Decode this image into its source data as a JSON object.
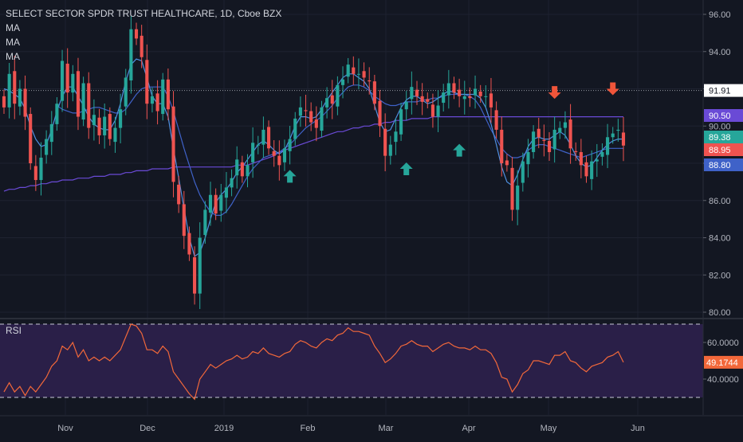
{
  "header": {
    "title": "SELECT SECTOR SPDR TRUST HEALTHCARE, 1D, Cboe BZX",
    "indicators": [
      "MA",
      "MA",
      "MA"
    ]
  },
  "rsi_panel": {
    "label": "RSI"
  },
  "colors": {
    "background": "#131722",
    "up": "#26a69a",
    "down": "#ef5350",
    "ma_fast": "#4f8fe0",
    "ma_mid": "#3f62c8",
    "ma_slow": "#6a4ad6",
    "rsi": "#f2683a",
    "rsi_band": "#2a1f48"
  },
  "chart_data": [
    {
      "type": "candlestick",
      "ylim": [
        80,
        97
      ],
      "y_ticks": [
        80,
        82,
        84,
        86,
        88,
        90,
        92,
        94,
        96
      ],
      "y_tick_labels": [
        "80.00",
        "82.00",
        "84.00",
        "86.00",
        "88.00",
        "90.00",
        "92.00",
        "94.00",
        "96.00"
      ],
      "x_ticks": [
        "Nov",
        "Dec",
        "2019",
        "Feb",
        "Mar",
        "Apr",
        "May",
        "Jun"
      ],
      "price_labels": [
        {
          "text": "91.91",
          "value": 91.91,
          "kind": "plain"
        },
        {
          "text": "90.50",
          "value": 90.5,
          "kind": "ma_slow"
        },
        {
          "text": "89.38",
          "value": 89.38,
          "kind": "up"
        },
        {
          "text": "88.95",
          "value": 88.95,
          "kind": "down"
        },
        {
          "text": "88.80",
          "value": 88.8,
          "kind": "ma_mid"
        }
      ],
      "horizontal_line": 91.91,
      "close": [
        91.0,
        92.8,
        91.2,
        92.0,
        90.5,
        88.0,
        87.1,
        88.3,
        89.3,
        90.1,
        91.2,
        93.5,
        91.8,
        92.8,
        90.5,
        92.3,
        89.9,
        90.6,
        89.5,
        90.5,
        89.3,
        89.9,
        90.9,
        92.6,
        95.2,
        94.7,
        93.7,
        91.2,
        91.6,
        90.8,
        92.5,
        90.9,
        87.0,
        85.8,
        84.1,
        83.1,
        81.0,
        84.0,
        85.5,
        86.3,
        85.3,
        86.3,
        86.7,
        87.2,
        88.2,
        87.3,
        87.9,
        89.1,
        89.0,
        89.8,
        88.8,
        88.4,
        87.9,
        88.8,
        89.3,
        90.4,
        91.0,
        90.8,
        90.2,
        89.9,
        91.0,
        91.5,
        91.2,
        92.2,
        92.5,
        93.3,
        92.8,
        92.8,
        92.6,
        92.4,
        91.2,
        90.0,
        88.4,
        89.0,
        89.7,
        90.9,
        91.3,
        92.1,
        91.6,
        91.3,
        91.3,
        90.5,
        91.1,
        91.8,
        92.3,
        91.8,
        91.6,
        91.6,
        91.5,
        92.0,
        91.6,
        91.6,
        91.0,
        89.8,
        88.0,
        87.9,
        85.5,
        86.8,
        88.1,
        88.6,
        89.7,
        89.4,
        89.2,
        88.6,
        89.8,
        89.9,
        90.2,
        88.8,
        88.6,
        87.9,
        87.3,
        88.1,
        88.2,
        88.6,
        89.4,
        89.6,
        89.8,
        88.95
      ],
      "ma_fast": [
        92.0,
        91.9,
        91.7,
        91.5,
        90.9,
        90.0,
        89.3,
        88.9,
        89.0,
        89.8,
        90.8,
        91.6,
        92.1,
        92.1,
        91.6,
        91.1,
        90.5,
        90.1,
        89.9,
        89.8,
        89.8,
        90.3,
        91.2,
        92.4,
        93.3,
        93.6,
        93.5,
        92.6,
        91.6,
        91.2,
        91.2,
        90.5,
        88.8,
        87.2,
        85.6,
        84.0,
        83.0,
        83.2,
        84.0,
        85.0,
        85.9,
        86.3,
        86.6,
        87.0,
        87.5,
        87.8,
        88.2,
        88.6,
        89.0,
        89.2,
        89.0,
        88.7,
        88.5,
        88.7,
        89.3,
        90.0,
        90.5,
        90.5,
        90.4,
        90.5,
        90.9,
        91.4,
        91.8,
        92.2,
        92.6,
        92.8,
        92.8,
        92.6,
        92.4,
        92.0,
        91.1,
        90.2,
        89.7,
        89.8,
        90.4,
        91.0,
        91.4,
        91.6,
        91.6,
        91.4,
        91.2,
        91.3,
        91.5,
        91.7,
        91.9,
        91.8,
        91.7,
        91.7,
        91.7,
        91.7,
        91.5,
        91.0,
        90.1,
        89.0,
        87.8,
        87.0,
        86.8,
        87.4,
        88.2,
        88.9,
        89.3,
        89.4,
        89.3,
        89.3,
        89.5,
        89.7,
        89.5,
        89.0,
        88.4,
        88.0,
        87.8,
        87.9,
        88.3,
        88.7,
        89.0,
        89.2,
        89.3,
        89.3
      ],
      "ma_mid": [
        null,
        null,
        null,
        null,
        null,
        null,
        null,
        null,
        null,
        null,
        91.1,
        90.9,
        90.8,
        90.7,
        90.7,
        90.8,
        90.9,
        91.0,
        91.0,
        90.9,
        90.8,
        90.7,
        90.7,
        90.9,
        91.3,
        91.7,
        92.0,
        92.1,
        92.1,
        92.1,
        92.1,
        91.6,
        90.8,
        89.8,
        88.8,
        87.9,
        87.0,
        86.3,
        85.8,
        85.4,
        85.2,
        85.2,
        85.4,
        85.8,
        86.3,
        86.8,
        87.3,
        87.7,
        88.0,
        88.3,
        88.4,
        88.5,
        88.6,
        88.8,
        89.0,
        89.3,
        89.6,
        89.9,
        90.1,
        90.3,
        90.5,
        90.8,
        91.1,
        91.5,
        91.8,
        92.1,
        92.2,
        92.2,
        92.1,
        91.9,
        91.6,
        91.4,
        91.2,
        91.1,
        91.1,
        91.2,
        91.3,
        91.3,
        91.3,
        91.4,
        91.4,
        91.5,
        91.5,
        91.6,
        91.7,
        91.7,
        91.7,
        91.7,
        91.6,
        91.4,
        91.0,
        90.4,
        89.8,
        89.3,
        88.8,
        88.5,
        88.3,
        88.3,
        88.4,
        88.7,
        88.9,
        89.0,
        89.0,
        88.9,
        88.8,
        88.7,
        88.6,
        88.5,
        88.4,
        88.3,
        88.4,
        88.5,
        88.6,
        88.7,
        88.8,
        88.8,
        88.8,
        88.8
      ],
      "ma_slow": [
        86.5,
        86.6,
        86.6,
        86.7,
        86.7,
        86.8,
        86.8,
        86.9,
        86.9,
        87.0,
        87.0,
        87.1,
        87.1,
        87.1,
        87.2,
        87.2,
        87.2,
        87.3,
        87.3,
        87.3,
        87.4,
        87.4,
        87.4,
        87.5,
        87.5,
        87.6,
        87.6,
        87.6,
        87.7,
        87.7,
        87.7,
        87.7,
        87.8,
        87.8,
        87.8,
        87.8,
        87.8,
        87.8,
        87.8,
        87.8,
        87.8,
        87.8,
        87.8,
        87.8,
        87.9,
        87.9,
        87.9,
        88.0,
        88.1,
        88.2,
        88.3,
        88.4,
        88.6,
        88.7,
        88.8,
        88.9,
        89.0,
        89.1,
        89.2,
        89.3,
        89.4,
        89.5,
        89.6,
        89.7,
        89.7,
        89.8,
        89.9,
        89.9,
        90.0,
        90.0,
        90.1,
        90.1,
        90.2,
        90.2,
        90.3,
        90.3,
        90.3,
        90.4,
        90.4,
        90.4,
        90.4,
        90.5,
        90.5,
        90.5,
        90.5,
        90.5,
        90.5,
        90.5,
        90.5,
        90.5,
        90.5,
        90.5,
        90.5,
        90.5,
        90.5,
        90.5,
        90.5,
        90.5,
        90.5,
        90.5,
        90.5,
        90.5,
        90.5,
        90.5,
        90.5,
        90.5,
        90.5,
        90.5,
        90.5,
        90.5,
        90.5,
        90.5,
        90.5,
        90.5,
        90.5,
        90.5,
        90.5,
        90.5
      ],
      "markers": [
        {
          "type": "up",
          "index": 54,
          "value": 87.3
        },
        {
          "type": "up",
          "index": 76,
          "value": 87.7
        },
        {
          "type": "up",
          "index": 86,
          "value": 88.7
        },
        {
          "type": "down",
          "index": 104,
          "value": 91.8
        },
        {
          "type": "down",
          "index": 115,
          "value": 92.0
        }
      ]
    },
    {
      "type": "line",
      "name": "RSI",
      "ylim": [
        25,
        72
      ],
      "y_ticks": [
        40,
        60
      ],
      "y_tick_labels": [
        "40.0000",
        "60.0000"
      ],
      "bands": [
        30,
        70
      ],
      "current_label": "49.1744",
      "current_value": 49.1744,
      "values": [
        33,
        38,
        33,
        36,
        31,
        36,
        33,
        37,
        41,
        47,
        50,
        58,
        56,
        60,
        52,
        56,
        50,
        52,
        50,
        52,
        50,
        53,
        56,
        63,
        70,
        69,
        65,
        56,
        56,
        54,
        58,
        55,
        44,
        40,
        36,
        32,
        29,
        40,
        44,
        48,
        46,
        48,
        50,
        51,
        53,
        51,
        52,
        55,
        54,
        57,
        54,
        53,
        52,
        54,
        55,
        59,
        61,
        60,
        58,
        57,
        60,
        62,
        61,
        64,
        65,
        68,
        66,
        66,
        65,
        64,
        58,
        54,
        49,
        51,
        54,
        58,
        59,
        61,
        59,
        58,
        58,
        55,
        57,
        59,
        60,
        58,
        57,
        57,
        56,
        58,
        56,
        56,
        54,
        49,
        41,
        40,
        33,
        37,
        43,
        45,
        50,
        50,
        49,
        48,
        53,
        53,
        55,
        50,
        49,
        46,
        44,
        47,
        48,
        49,
        52,
        53,
        55,
        49.17
      ]
    }
  ]
}
